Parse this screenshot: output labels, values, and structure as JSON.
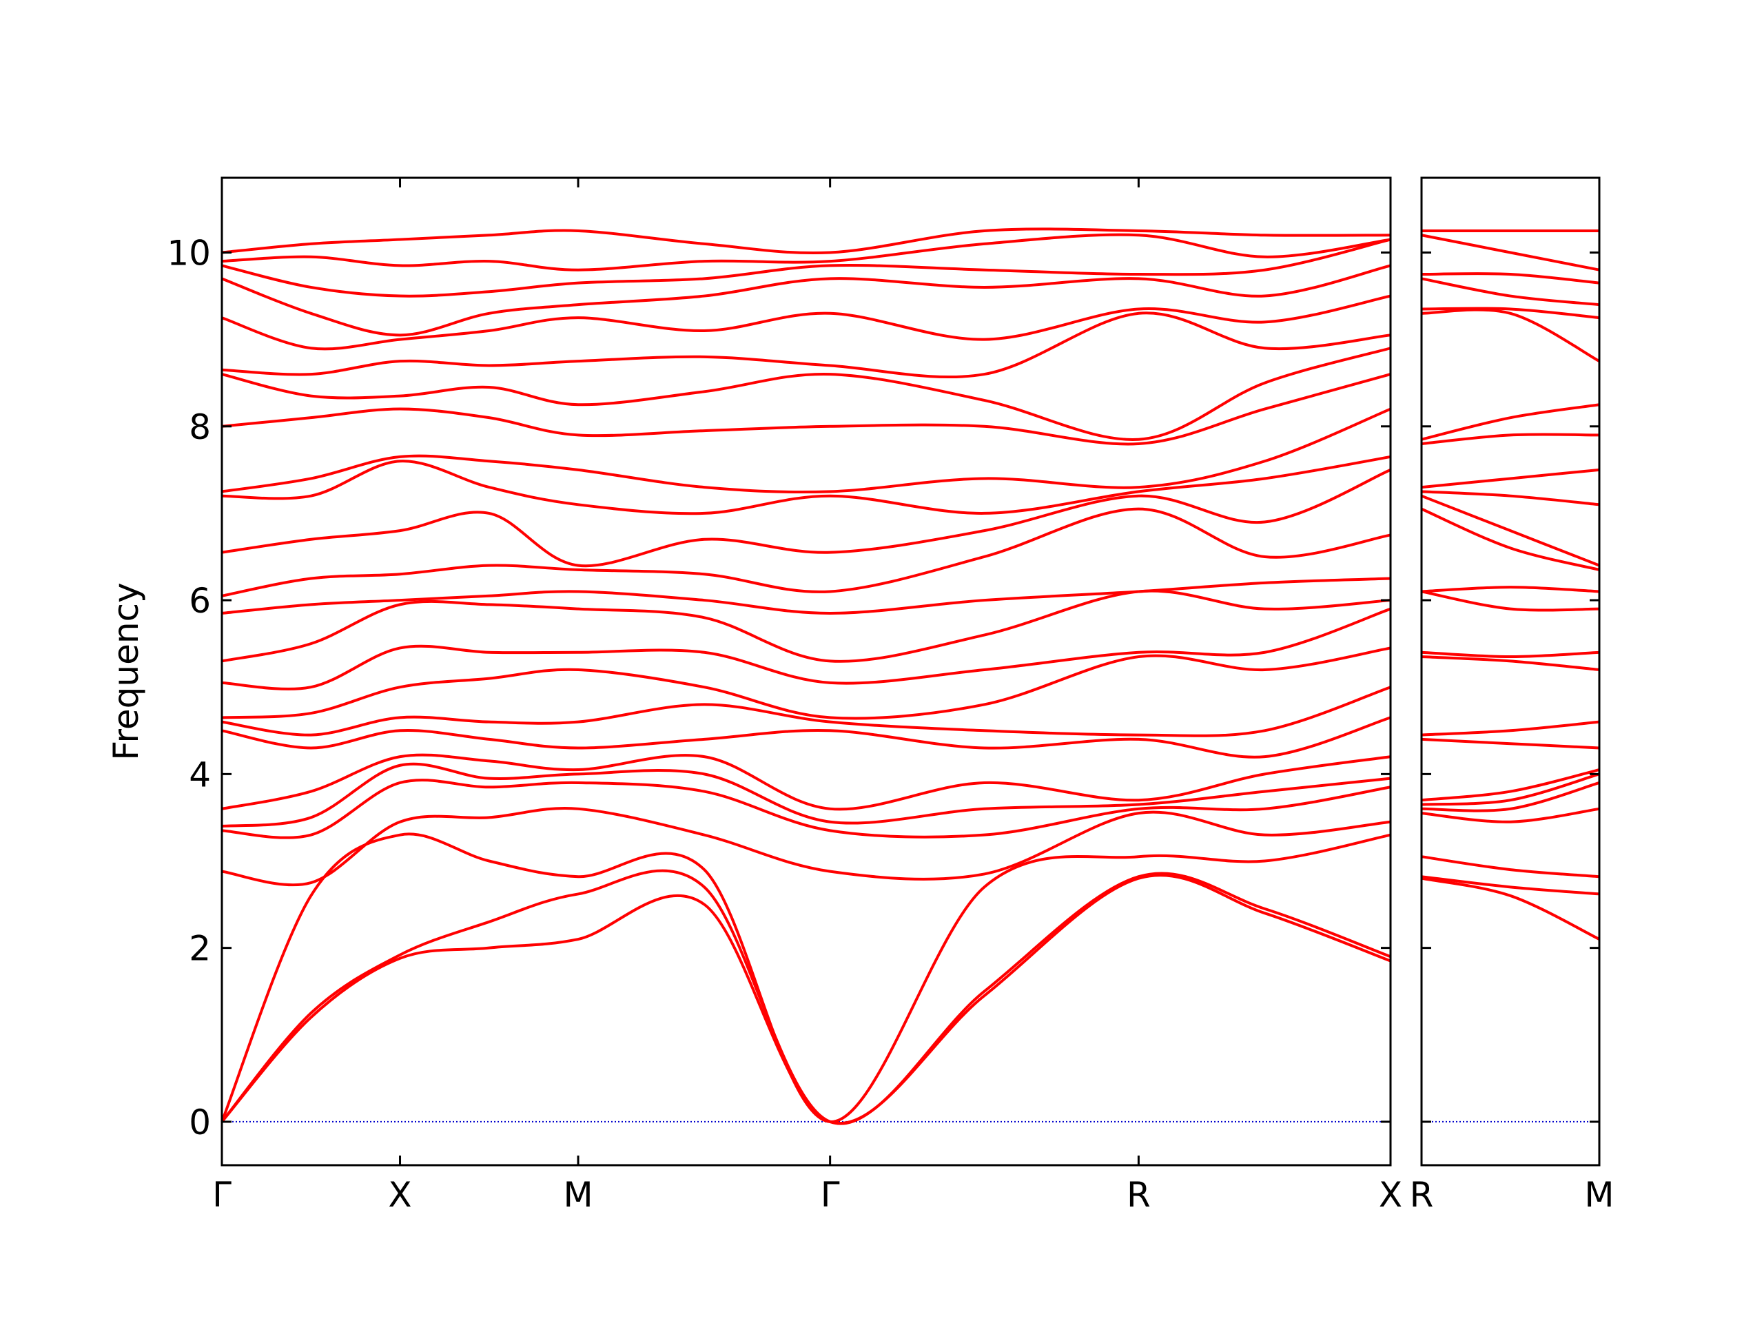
{
  "chart_data": [
    {
      "type": "line",
      "ylabel": "Frequency",
      "color": "#ff0000",
      "hline": 0,
      "hline_color": "#0000cc",
      "x": [
        0,
        0.25,
        0.5,
        0.75,
        1.0,
        1.354,
        1.7071,
        2.14,
        2.5731,
        2.927,
        3.2802
      ],
      "xlim": [
        0,
        3.2802
      ],
      "xticks": [
        {
          "value": 0,
          "label": "Γ"
        },
        {
          "value": 0.5,
          "label": "X"
        },
        {
          "value": 1.0,
          "label": "M"
        },
        {
          "value": 1.7071,
          "label": "Γ"
        },
        {
          "value": 2.5731,
          "label": "R"
        },
        {
          "value": 3.2802,
          "label": "X"
        }
      ],
      "ylim": [
        -0.5,
        10.86
      ],
      "yticks": [
        0,
        2,
        4,
        6,
        8,
        10
      ],
      "series": [
        {
          "values": [
            0,
            1.2,
            1.88,
            2.0,
            2.1,
            2.5,
            0,
            1.45,
            2.8,
            2.4,
            1.85
          ]
        },
        {
          "values": [
            0,
            1.25,
            1.92,
            2.3,
            2.62,
            2.7,
            0,
            1.5,
            2.82,
            2.45,
            1.9
          ]
        },
        {
          "values": [
            0,
            2.6,
            3.3,
            3.0,
            2.82,
            2.9,
            0,
            2.7,
            3.05,
            3.0,
            3.3
          ]
        },
        {
          "values": [
            2.88,
            2.75,
            3.45,
            3.5,
            3.6,
            3.3,
            2.88,
            2.85,
            3.55,
            3.3,
            3.45
          ]
        },
        {
          "values": [
            3.35,
            3.3,
            3.9,
            3.85,
            3.9,
            3.8,
            3.35,
            3.3,
            3.6,
            3.6,
            3.85
          ]
        },
        {
          "values": [
            3.4,
            3.5,
            4.1,
            3.95,
            4.0,
            4.0,
            3.45,
            3.6,
            3.65,
            3.8,
            3.95
          ]
        },
        {
          "values": [
            3.6,
            3.8,
            4.2,
            4.15,
            4.05,
            4.2,
            3.6,
            3.9,
            3.7,
            4.0,
            4.2
          ]
        },
        {
          "values": [
            4.5,
            4.3,
            4.5,
            4.4,
            4.3,
            4.4,
            4.5,
            4.3,
            4.4,
            4.2,
            4.65
          ]
        },
        {
          "values": [
            4.6,
            4.45,
            4.65,
            4.6,
            4.6,
            4.8,
            4.6,
            4.5,
            4.45,
            4.5,
            5.0
          ]
        },
        {
          "values": [
            4.65,
            4.7,
            5.0,
            5.1,
            5.2,
            5.0,
            4.65,
            4.8,
            5.35,
            5.2,
            5.45
          ]
        },
        {
          "values": [
            5.05,
            5.0,
            5.45,
            5.4,
            5.4,
            5.4,
            5.05,
            5.2,
            5.4,
            5.4,
            5.9
          ]
        },
        {
          "values": [
            5.3,
            5.5,
            5.95,
            5.95,
            5.9,
            5.8,
            5.3,
            5.6,
            6.1,
            5.9,
            6.0
          ]
        },
        {
          "values": [
            5.85,
            5.95,
            6.0,
            6.05,
            6.1,
            6.0,
            5.85,
            6.0,
            6.1,
            6.2,
            6.25
          ]
        },
        {
          "values": [
            6.05,
            6.25,
            6.3,
            6.4,
            6.35,
            6.3,
            6.1,
            6.5,
            7.05,
            6.5,
            6.75
          ]
        },
        {
          "values": [
            6.55,
            6.7,
            6.8,
            7.0,
            6.4,
            6.7,
            6.55,
            6.8,
            7.2,
            6.9,
            7.5
          ]
        },
        {
          "values": [
            7.2,
            7.2,
            7.6,
            7.3,
            7.1,
            7.0,
            7.2,
            7.0,
            7.25,
            7.4,
            7.65
          ]
        },
        {
          "values": [
            7.25,
            7.4,
            7.65,
            7.6,
            7.5,
            7.3,
            7.25,
            7.4,
            7.3,
            7.6,
            8.2
          ]
        },
        {
          "values": [
            8.0,
            8.1,
            8.2,
            8.1,
            7.9,
            7.95,
            8.0,
            8.0,
            7.8,
            8.2,
            8.6
          ]
        },
        {
          "values": [
            8.6,
            8.35,
            8.35,
            8.45,
            8.25,
            8.4,
            8.6,
            8.3,
            7.85,
            8.5,
            8.9
          ]
        },
        {
          "values": [
            8.65,
            8.6,
            8.75,
            8.7,
            8.75,
            8.8,
            8.7,
            8.6,
            9.3,
            8.9,
            9.05
          ]
        },
        {
          "values": [
            9.25,
            8.9,
            9.0,
            9.1,
            9.25,
            9.1,
            9.3,
            9.0,
            9.35,
            9.2,
            9.5
          ]
        },
        {
          "values": [
            9.7,
            9.3,
            9.05,
            9.3,
            9.4,
            9.5,
            9.7,
            9.6,
            9.7,
            9.5,
            9.85
          ]
        },
        {
          "values": [
            9.85,
            9.6,
            9.5,
            9.55,
            9.65,
            9.7,
            9.85,
            9.8,
            9.75,
            9.8,
            10.15
          ]
        },
        {
          "values": [
            9.9,
            9.95,
            9.85,
            9.9,
            9.8,
            9.9,
            9.9,
            10.1,
            10.2,
            9.95,
            10.15
          ]
        },
        {
          "values": [
            10.0,
            10.1,
            10.15,
            10.2,
            10.25,
            10.1,
            10.0,
            10.25,
            10.25,
            10.2,
            10.2
          ]
        }
      ]
    },
    {
      "type": "line",
      "color": "#ff0000",
      "hline": 0,
      "hline_color": "#0000cc",
      "x": [
        0,
        0.25,
        0.5
      ],
      "xlim": [
        0,
        0.5
      ],
      "xticks": [
        {
          "value": 0,
          "label": "R"
        },
        {
          "value": 0.5,
          "label": "M"
        }
      ],
      "ylim": [
        -0.5,
        10.86
      ],
      "yticks": [
        0,
        2,
        4,
        6,
        8,
        10
      ],
      "series": [
        {
          "values": [
            2.8,
            2.6,
            2.1
          ]
        },
        {
          "values": [
            2.82,
            2.7,
            2.62
          ]
        },
        {
          "values": [
            3.05,
            2.9,
            2.82
          ]
        },
        {
          "values": [
            3.55,
            3.45,
            3.6
          ]
        },
        {
          "values": [
            3.6,
            3.6,
            3.9
          ]
        },
        {
          "values": [
            3.65,
            3.7,
            4.0
          ]
        },
        {
          "values": [
            3.7,
            3.8,
            4.05
          ]
        },
        {
          "values": [
            4.4,
            4.35,
            4.3
          ]
        },
        {
          "values": [
            4.45,
            4.5,
            4.6
          ]
        },
        {
          "values": [
            5.35,
            5.3,
            5.2
          ]
        },
        {
          "values": [
            5.4,
            5.35,
            5.4
          ]
        },
        {
          "values": [
            6.1,
            5.9,
            5.9
          ]
        },
        {
          "values": [
            6.1,
            6.15,
            6.1
          ]
        },
        {
          "values": [
            7.05,
            6.6,
            6.35
          ]
        },
        {
          "values": [
            7.2,
            6.8,
            6.4
          ]
        },
        {
          "values": [
            7.25,
            7.2,
            7.1
          ]
        },
        {
          "values": [
            7.3,
            7.4,
            7.5
          ]
        },
        {
          "values": [
            7.8,
            7.9,
            7.9
          ]
        },
        {
          "values": [
            7.85,
            8.1,
            8.25
          ]
        },
        {
          "values": [
            9.3,
            9.3,
            8.75
          ]
        },
        {
          "values": [
            9.35,
            9.35,
            9.25
          ]
        },
        {
          "values": [
            9.7,
            9.5,
            9.4
          ]
        },
        {
          "values": [
            9.75,
            9.75,
            9.65
          ]
        },
        {
          "values": [
            10.2,
            10.0,
            9.8
          ]
        },
        {
          "values": [
            10.25,
            10.25,
            10.25
          ]
        }
      ]
    }
  ]
}
